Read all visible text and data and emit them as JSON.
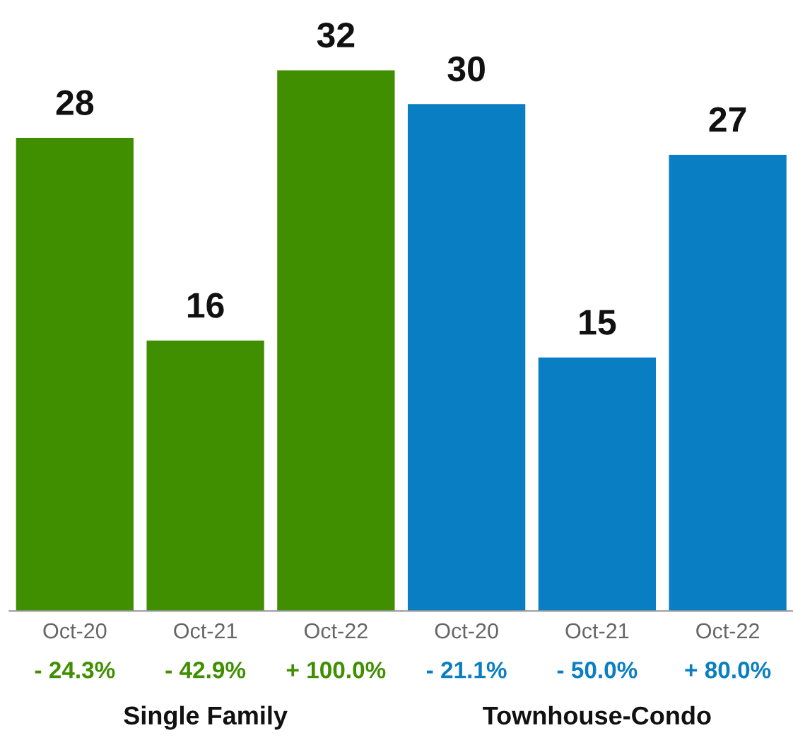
{
  "chart_data": [
    {
      "type": "bar",
      "xlabel": "Single Family",
      "categories": [
        "Oct-20",
        "Oct-21",
        "Oct-22"
      ],
      "values": [
        28,
        16,
        32
      ],
      "colors": [
        "#3f8f00",
        "#3f8f00",
        "#3f8f00"
      ],
      "data_labels": true,
      "tick_labels": "x",
      "grid": false,
      "annotations": [
        "- 24.3%",
        "- 42.9%",
        "+ 100.0%"
      ]
    },
    {
      "type": "bar",
      "xlabel": "Townhouse-Condo",
      "categories": [
        "Oct-20",
        "Oct-21",
        "Oct-22"
      ],
      "values": [
        30,
        15,
        27
      ],
      "colors": [
        "#0a7ec2",
        "#0a7ec2",
        "#0a7ec2"
      ],
      "data_labels": true,
      "tick_labels": "x",
      "grid": false,
      "annotations": [
        "- 21.1%",
        "- 50.0%",
        "+ 80.0%"
      ]
    }
  ]
}
